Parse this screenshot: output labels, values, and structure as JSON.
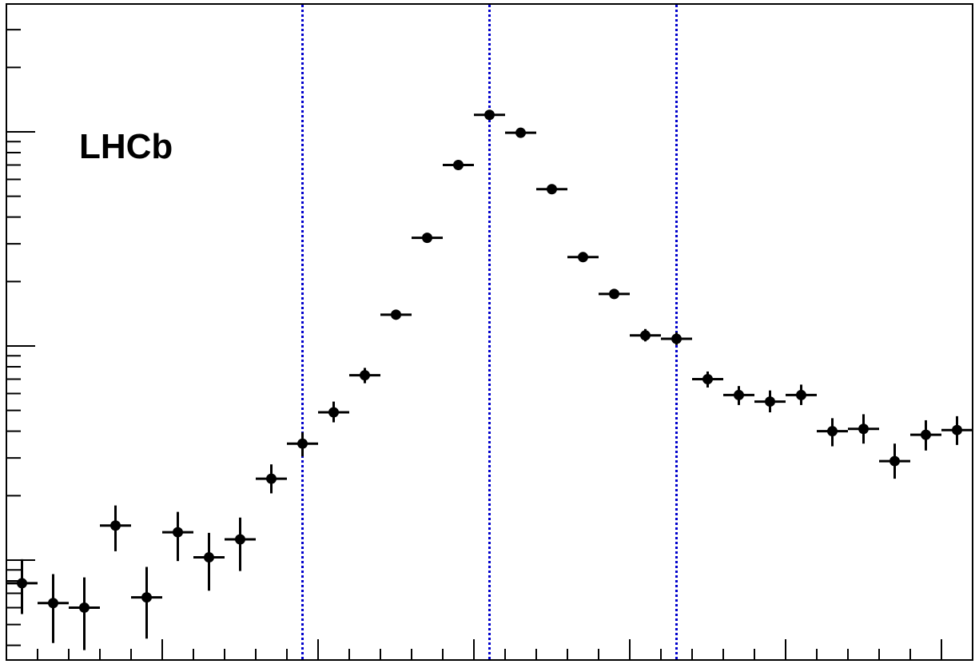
{
  "chart_data": {
    "type": "scatter",
    "yscale": "log",
    "grid": false,
    "annotations": [
      {
        "text": "LHCb"
      }
    ],
    "x_axis_range": [
      0,
      31
    ],
    "vertical_reference_lines": [
      9.5,
      15.5,
      21.5
    ],
    "series": [
      {
        "marker_color": "#000000",
        "points": [
          {
            "x": 0.5,
            "y": 0.78,
            "ylo": 0.56,
            "yhi": 1.01
          },
          {
            "x": 1.5,
            "y": 0.63,
            "ylo": 0.41,
            "yhi": 0.86
          },
          {
            "x": 2.5,
            "y": 0.6,
            "ylo": 0.38,
            "yhi": 0.83
          },
          {
            "x": 3.5,
            "y": 1.45,
            "ylo": 1.1,
            "yhi": 1.8
          },
          {
            "x": 4.5,
            "y": 0.67,
            "ylo": 0.43,
            "yhi": 0.93
          },
          {
            "x": 5.5,
            "y": 1.35,
            "ylo": 0.99,
            "yhi": 1.68
          },
          {
            "x": 6.5,
            "y": 1.03,
            "ylo": 0.72,
            "yhi": 1.34
          },
          {
            "x": 7.5,
            "y": 1.25,
            "ylo": 0.89,
            "yhi": 1.58
          },
          {
            "x": 8.5,
            "y": 2.4,
            "ylo": 2.05,
            "yhi": 2.8
          },
          {
            "x": 9.5,
            "y": 3.5,
            "ylo": 3.05,
            "yhi": 3.95
          },
          {
            "x": 10.5,
            "y": 4.9,
            "ylo": 4.4,
            "yhi": 5.5
          },
          {
            "x": 11.5,
            "y": 7.3,
            "ylo": 6.7,
            "yhi": 7.9
          },
          {
            "x": 12.5,
            "y": 14.0,
            "ylo": 13.4,
            "yhi": 14.6
          },
          {
            "x": 13.5,
            "y": 32.0,
            "ylo": 31.2,
            "yhi": 32.8
          },
          {
            "x": 14.5,
            "y": 70.0,
            "ylo": 69.0,
            "yhi": 71.0
          },
          {
            "x": 15.5,
            "y": 120.0,
            "ylo": 118.5,
            "yhi": 121.5
          },
          {
            "x": 16.5,
            "y": 99.0,
            "ylo": 97.5,
            "yhi": 100.5
          },
          {
            "x": 17.5,
            "y": 54.0,
            "ylo": 53.0,
            "yhi": 55.0
          },
          {
            "x": 18.5,
            "y": 26.0,
            "ylo": 25.2,
            "yhi": 26.8
          },
          {
            "x": 19.5,
            "y": 17.5,
            "ylo": 16.7,
            "yhi": 18.3
          },
          {
            "x": 20.5,
            "y": 11.2,
            "ylo": 10.5,
            "yhi": 12.0
          },
          {
            "x": 21.5,
            "y": 10.8,
            "ylo": 10.1,
            "yhi": 11.6
          },
          {
            "x": 22.5,
            "y": 7.0,
            "ylo": 6.4,
            "yhi": 7.6
          },
          {
            "x": 23.5,
            "y": 5.9,
            "ylo": 5.3,
            "yhi": 6.5
          },
          {
            "x": 24.5,
            "y": 5.5,
            "ylo": 4.9,
            "yhi": 6.2
          },
          {
            "x": 25.5,
            "y": 5.9,
            "ylo": 5.3,
            "yhi": 6.6
          },
          {
            "x": 26.5,
            "y": 4.0,
            "ylo": 3.4,
            "yhi": 4.6
          },
          {
            "x": 27.5,
            "y": 4.1,
            "ylo": 3.5,
            "yhi": 4.8
          },
          {
            "x": 28.5,
            "y": 2.9,
            "ylo": 2.4,
            "yhi": 3.5
          },
          {
            "x": 29.5,
            "y": 3.85,
            "ylo": 3.25,
            "yhi": 4.5
          },
          {
            "x": 30.5,
            "y": 4.05,
            "ylo": 3.45,
            "yhi": 4.7
          }
        ]
      }
    ],
    "reference_line_color": "#0000cc"
  }
}
